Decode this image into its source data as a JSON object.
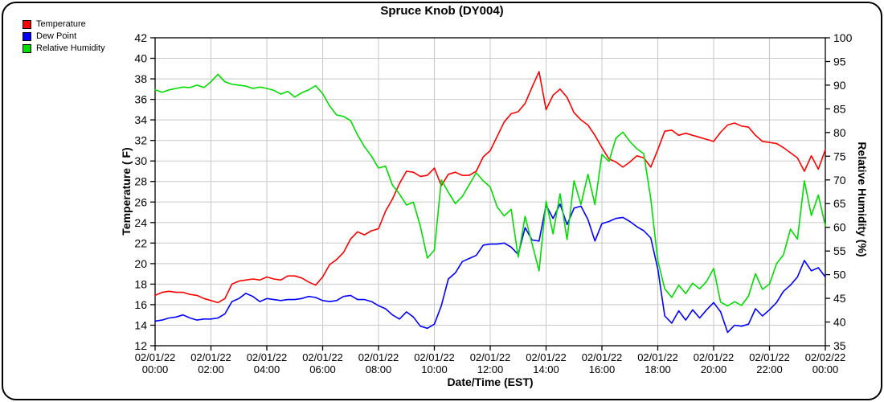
{
  "title": "Spruce Knob (DY004)",
  "chart_data": {
    "type": "line",
    "title": "Spruce Knob (DY004)",
    "x_label": "Date/Time (EST)",
    "grid": true,
    "legend_position": "top-left",
    "x_range_hours": [
      0,
      24
    ],
    "x_step_hours": 0.25,
    "x_ticks": [
      {
        "date": "02/01/22",
        "time": "00:00"
      },
      {
        "date": "02/01/22",
        "time": "02:00"
      },
      {
        "date": "02/01/22",
        "time": "04:00"
      },
      {
        "date": "02/01/22",
        "time": "06:00"
      },
      {
        "date": "02/01/22",
        "time": "08:00"
      },
      {
        "date": "02/01/22",
        "time": "10:00"
      },
      {
        "date": "02/01/22",
        "time": "12:00"
      },
      {
        "date": "02/01/22",
        "time": "14:00"
      },
      {
        "date": "02/01/22",
        "time": "16:00"
      },
      {
        "date": "02/01/22",
        "time": "18:00"
      },
      {
        "date": "02/01/22",
        "time": "20:00"
      },
      {
        "date": "02/01/22",
        "time": "22:00"
      },
      {
        "date": "02/02/22",
        "time": "00:00"
      }
    ],
    "y_left": {
      "label": "Temperature ( F)",
      "min": 12,
      "max": 42,
      "step": 2
    },
    "y_right": {
      "label": "Relative Humidity (%)",
      "min": 35,
      "max": 100,
      "step": 5
    },
    "colors": {
      "grid": "#c8c8c8",
      "axis": "#000000"
    },
    "series": [
      {
        "name": "Temperature",
        "axis": "left",
        "color": "#ff0000",
        "values": [
          16.9,
          17.2,
          17.3,
          17.2,
          17.2,
          17.0,
          16.9,
          16.6,
          16.4,
          16.2,
          16.6,
          18.0,
          18.3,
          18.4,
          18.5,
          18.4,
          18.7,
          18.5,
          18.4,
          18.8,
          18.8,
          18.6,
          18.2,
          17.9,
          18.7,
          19.9,
          20.4,
          21.1,
          22.4,
          23.1,
          22.8,
          23.2,
          23.4,
          25.1,
          26.3,
          27.8,
          29.0,
          28.9,
          28.5,
          28.6,
          29.3,
          27.6,
          28.7,
          28.9,
          28.6,
          28.6,
          29.0,
          30.4,
          31.0,
          32.4,
          33.8,
          34.6,
          34.8,
          35.6,
          37.2,
          38.7,
          35.0,
          36.4,
          37.0,
          36.2,
          34.7,
          34.0,
          33.5,
          32.5,
          31.3,
          30.2,
          29.9,
          29.4,
          29.9,
          30.5,
          30.3,
          29.4,
          31.1,
          32.9,
          33.0,
          32.5,
          32.7,
          32.5,
          32.3,
          32.1,
          31.9,
          32.8,
          33.5,
          33.7,
          33.4,
          33.3,
          32.5,
          31.9,
          31.8,
          31.7,
          31.3,
          30.8,
          30.3,
          29.0,
          30.5,
          29.2,
          31.1
        ]
      },
      {
        "name": "Dew Point",
        "axis": "left",
        "color": "#0000ff",
        "values": [
          14.4,
          14.5,
          14.7,
          14.8,
          15.0,
          14.7,
          14.5,
          14.6,
          14.6,
          14.7,
          15.1,
          16.3,
          16.6,
          17.1,
          16.8,
          16.3,
          16.6,
          16.5,
          16.4,
          16.5,
          16.5,
          16.6,
          16.8,
          16.7,
          16.4,
          16.3,
          16.4,
          16.8,
          16.9,
          16.5,
          16.5,
          16.3,
          15.9,
          15.6,
          15.0,
          14.6,
          15.3,
          14.8,
          13.9,
          13.7,
          14.1,
          15.9,
          18.5,
          19.1,
          20.2,
          20.5,
          20.8,
          21.8,
          21.9,
          21.9,
          22.0,
          21.6,
          20.9,
          23.5,
          22.3,
          22.2,
          25.7,
          24.4,
          25.8,
          23.8,
          25.4,
          25.6,
          24.3,
          22.2,
          23.9,
          24.1,
          24.4,
          24.5,
          24.1,
          23.6,
          23.2,
          22.5,
          19.5,
          14.9,
          14.2,
          15.4,
          14.5,
          15.5,
          14.7,
          15.5,
          16.2,
          15.3,
          13.3,
          14.0,
          13.9,
          14.1,
          15.6,
          14.9,
          15.5,
          16.2,
          17.3,
          17.9,
          18.7,
          20.3,
          19.3,
          19.6,
          18.7
        ]
      },
      {
        "name": "Relative Humidity",
        "axis": "right",
        "color": "#00dd00",
        "values": [
          89.0,
          88.5,
          89.0,
          89.3,
          89.6,
          89.5,
          90.0,
          89.5,
          90.7,
          92.3,
          90.7,
          90.2,
          90.0,
          89.8,
          89.3,
          89.6,
          89.3,
          88.9,
          88.1,
          88.7,
          87.5,
          88.4,
          89.0,
          89.9,
          88.2,
          85.6,
          83.7,
          83.4,
          82.5,
          79.5,
          77.0,
          75.0,
          72.5,
          72.9,
          68.9,
          67.0,
          64.7,
          65.3,
          60.2,
          53.5,
          55.2,
          70.0,
          67.4,
          65.0,
          66.5,
          69.0,
          71.5,
          69.8,
          68.5,
          64.3,
          62.4,
          63.8,
          53.7,
          62.3,
          56.5,
          50.8,
          65.5,
          58.6,
          67.1,
          57.4,
          69.8,
          64.8,
          71.2,
          64.8,
          75.4,
          73.9,
          78.8,
          80.1,
          78.1,
          76.6,
          75.5,
          66.0,
          53.0,
          47.0,
          45.2,
          47.8,
          46.0,
          48.2,
          47.0,
          48.6,
          51.3,
          44.2,
          43.4,
          44.3,
          43.5,
          45.5,
          50.2,
          46.9,
          48.0,
          52.3,
          54.2,
          59.6,
          57.5,
          69.8,
          62.5,
          66.8,
          60.3
        ]
      }
    ]
  }
}
